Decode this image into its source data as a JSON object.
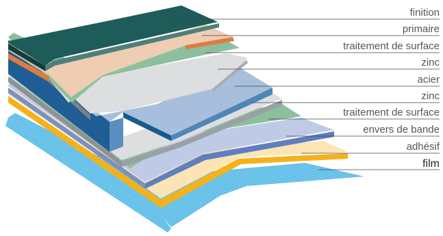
{
  "layers": [
    {
      "id": "finition",
      "label": "finition",
      "color": "#1e5c5a"
    },
    {
      "id": "primaire",
      "label": "primaire",
      "color": "#eecdb3"
    },
    {
      "id": "traitement-surface-top",
      "label": "traitement de surface",
      "color": "#8cbf9d"
    },
    {
      "id": "zinc-top",
      "label": "zinc",
      "color": "#dcdee0"
    },
    {
      "id": "acier",
      "label": "acier",
      "color": "#a7bfdc"
    },
    {
      "id": "zinc-bottom",
      "label": "zinc",
      "color": "#dcdee0"
    },
    {
      "id": "traitement-surface-bottom",
      "label": "traitement de surface",
      "color": "#8cbf9d"
    },
    {
      "id": "envers-de-bande",
      "label": "envers de bande",
      "color": "#bfcbe6"
    },
    {
      "id": "adhesif",
      "label": "adhésif",
      "color": "#fde4b4"
    },
    {
      "id": "film",
      "label": "film",
      "color": "#4fb6e4"
    }
  ]
}
